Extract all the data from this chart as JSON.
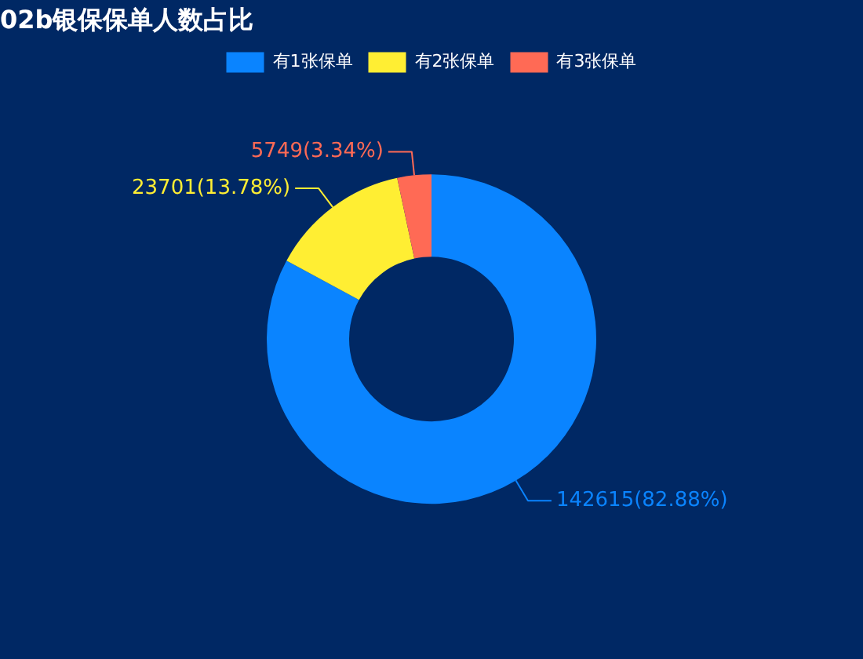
{
  "chart_data": {
    "type": "donut",
    "title": "02b银保保单人数占比",
    "categories": [
      "有1张保单",
      "有2张保单",
      "有3张保单"
    ],
    "values": [
      142615,
      23701,
      5749
    ],
    "colors": [
      "#0a84ff",
      "#ffee33",
      "#ff6a55"
    ],
    "value_labels": [
      "142615(82.88%)",
      "23701(13.78%)",
      "5749(3.34%)"
    ],
    "legend": "top"
  }
}
